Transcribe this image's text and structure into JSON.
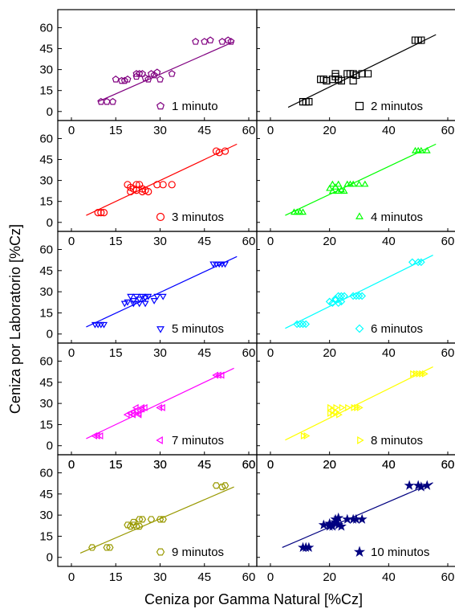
{
  "figure": {
    "ylabel": "Ceniza por Laboratorio [%Cz]",
    "xlabel": "Ceniza por Gamma Natural [%Cz]"
  },
  "chart_data": {
    "type": "scatter",
    "xlim": [
      0,
      60
    ],
    "ylim": [
      -3,
      66
    ],
    "yticks": [
      0,
      15,
      30,
      45,
      60
    ],
    "xticks_left": [
      0,
      15,
      30,
      45,
      60
    ],
    "xticks_right": [
      0,
      20,
      40,
      60
    ],
    "panels": [
      {
        "name": "1 minuto",
        "color": "#800080",
        "marker": "pentagon",
        "fit": [
          [
            9,
            7
          ],
          [
            55,
            50
          ]
        ],
        "x": [
          10,
          12,
          14,
          15,
          17,
          18,
          19,
          22,
          22,
          23,
          24,
          25,
          26,
          27,
          28,
          29,
          30,
          34,
          42,
          45,
          47,
          51,
          53,
          54
        ],
        "y": [
          7,
          7,
          7,
          23,
          22,
          22,
          23,
          27,
          25,
          27,
          27,
          24,
          23,
          27,
          26,
          28,
          23,
          27,
          50,
          50,
          51,
          50,
          51,
          50
        ]
      },
      {
        "name": "2 minutos",
        "color": "#000000",
        "marker": "square",
        "fit": [
          [
            6,
            3
          ],
          [
            56,
            55
          ]
        ],
        "x": [
          11,
          12,
          13,
          17,
          18,
          19,
          21,
          22,
          22,
          23,
          24,
          26,
          27,
          28,
          28,
          29,
          31,
          33,
          49,
          50,
          51
        ],
        "y": [
          7,
          7,
          7,
          23,
          23,
          22,
          23,
          25,
          27,
          23,
          22,
          27,
          27,
          27,
          22,
          26,
          27,
          27,
          51,
          51,
          51
        ]
      },
      {
        "name": "3 minutos",
        "color": "#ff0000",
        "marker": "circle",
        "fit": [
          [
            5,
            5
          ],
          [
            56,
            56
          ]
        ],
        "x": [
          9,
          10,
          11,
          19,
          20,
          20,
          21,
          22,
          22,
          23,
          24,
          24,
          25,
          26,
          29,
          31,
          34,
          49,
          50,
          52
        ],
        "y": [
          7,
          7,
          7,
          27,
          22,
          25,
          24,
          27,
          23,
          27,
          24,
          22,
          23,
          22,
          27,
          27,
          27,
          51,
          50,
          51
        ]
      },
      {
        "name": "4 minutos",
        "color": "#00ff00",
        "marker": "triangle-up",
        "fit": [
          [
            5,
            5
          ],
          [
            56,
            56
          ]
        ],
        "x": [
          8,
          9,
          10,
          11,
          20,
          21,
          21,
          22,
          23,
          23,
          24,
          25,
          26,
          27,
          28,
          30,
          32,
          49,
          50,
          51,
          53
        ],
        "y": [
          7,
          7,
          7,
          7,
          24,
          27,
          22,
          25,
          22,
          27,
          23,
          22,
          27,
          27,
          27,
          27,
          27,
          51,
          51,
          51,
          51
        ]
      },
      {
        "name": "5 minutos",
        "color": "#0000ff",
        "marker": "triangle-down",
        "fit": [
          [
            5,
            5
          ],
          [
            56,
            55
          ]
        ],
        "x": [
          8,
          9,
          10,
          11,
          18,
          19,
          20,
          21,
          21,
          22,
          23,
          23,
          24,
          25,
          25,
          26,
          28,
          29,
          31,
          48,
          49,
          50,
          51,
          52
        ],
        "y": [
          7,
          7,
          7,
          7,
          22,
          23,
          27,
          22,
          24,
          27,
          22,
          25,
          27,
          22,
          26,
          27,
          24,
          27,
          27,
          50,
          50,
          50,
          50,
          50
        ]
      },
      {
        "name": "6 minutos",
        "color": "#00ffff",
        "marker": "diamond",
        "fit": [
          [
            5,
            4
          ],
          [
            55,
            56
          ]
        ],
        "x": [
          9,
          10,
          11,
          12,
          20,
          21,
          22,
          22,
          23,
          23,
          24,
          24,
          25,
          28,
          29,
          30,
          31,
          48,
          50,
          51
        ],
        "y": [
          7,
          7,
          7,
          7,
          23,
          22,
          25,
          24,
          27,
          22,
          27,
          23,
          27,
          27,
          27,
          27,
          27,
          51,
          51,
          51
        ]
      },
      {
        "name": "7 minutos",
        "color": "#ff00ff",
        "marker": "triangle-left",
        "fit": [
          [
            5,
            5
          ],
          [
            55,
            55
          ]
        ],
        "x": [
          8,
          9,
          10,
          19,
          20,
          21,
          21,
          22,
          22,
          23,
          23,
          24,
          24,
          25,
          30,
          31,
          49,
          50,
          51
        ],
        "y": [
          7,
          7,
          7,
          22,
          23,
          24,
          22,
          27,
          25,
          23,
          22,
          27,
          26,
          27,
          27,
          27,
          50,
          50,
          50
        ]
      },
      {
        "name": "8 minutos",
        "color": "#ffff00",
        "marker": "triangle-right",
        "fit": [
          [
            5,
            4
          ],
          [
            55,
            56
          ]
        ],
        "x": [
          11,
          12,
          20,
          20,
          21,
          21,
          22,
          22,
          23,
          24,
          26,
          28,
          29,
          30,
          48,
          49,
          50,
          51,
          52
        ],
        "y": [
          7,
          7,
          27,
          23,
          22,
          25,
          24,
          27,
          22,
          27,
          27,
          27,
          27,
          27,
          51,
          51,
          51,
          51,
          51
        ]
      },
      {
        "name": "9 minutos",
        "color": "#999900",
        "marker": "hexagon",
        "fit": [
          [
            3,
            3
          ],
          [
            55,
            50
          ]
        ],
        "x": [
          7,
          12,
          13,
          19,
          20,
          21,
          21,
          22,
          23,
          23,
          24,
          27,
          30,
          31,
          49,
          51,
          52
        ],
        "y": [
          7,
          7,
          7,
          23,
          22,
          23,
          25,
          22,
          27,
          22,
          27,
          27,
          27,
          27,
          51,
          50,
          51
        ],
        "x_scale": "left"
      },
      {
        "name": "10 minutos",
        "color": "#000080",
        "marker": "star",
        "fit": [
          [
            4,
            7
          ],
          [
            55,
            53
          ]
        ],
        "x": [
          11,
          12,
          13,
          18,
          20,
          20,
          21,
          22,
          22,
          23,
          23,
          24,
          26,
          28,
          29,
          31,
          47,
          50,
          51,
          53
        ],
        "y": [
          7,
          7,
          7,
          23,
          22,
          24,
          22,
          25,
          27,
          28,
          23,
          22,
          27,
          27,
          27,
          27,
          51,
          51,
          50,
          51
        ]
      }
    ]
  }
}
